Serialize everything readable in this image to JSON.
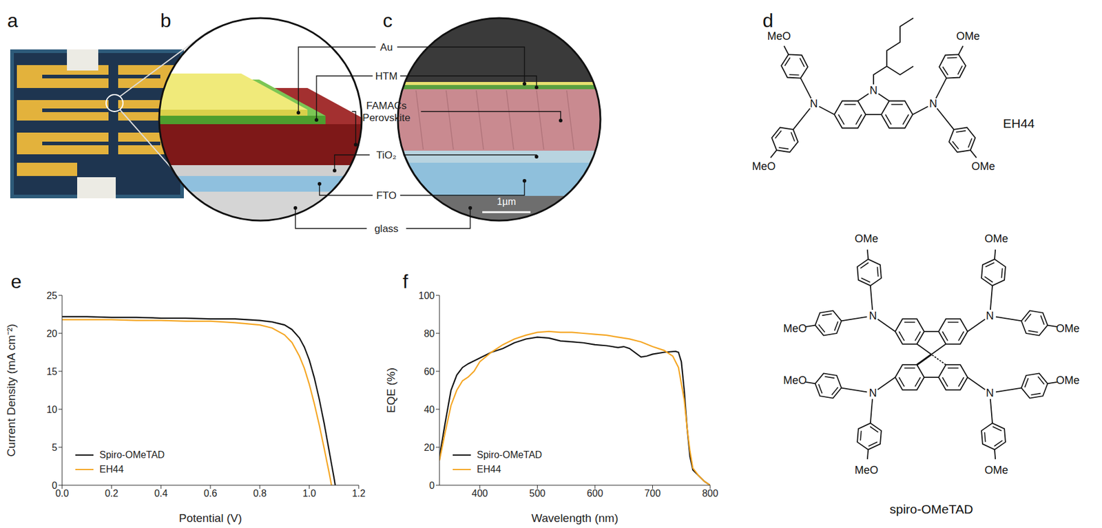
{
  "panel_letters": [
    "a",
    "b",
    "c",
    "d",
    "e",
    "f"
  ],
  "device": {
    "layers": [
      "Au",
      "HTM",
      "FAMACs Perovskite",
      "TiO₂",
      "FTO",
      "glass"
    ],
    "scale_bar": "1µm"
  },
  "molecules": {
    "top": "EH44",
    "bottom": "spiro-OMeTAD",
    "methoxy_left": "MeO",
    "methoxy_right": "OMe",
    "nitrogen": "N"
  },
  "chart_data": [
    {
      "type": "line",
      "x_label": "Potential (V)",
      "y_label": "Current Density (mA cm⁻²)",
      "xlim": [
        0,
        1.2
      ],
      "xticks": [
        {
          "value": 0,
          "label": "0.0"
        },
        0.2,
        0.4,
        0.6,
        0.8,
        {
          "value": 1,
          "label": "1.0"
        },
        1.2
      ],
      "ylim": [
        0,
        25
      ],
      "yticks": [
        0,
        5,
        10,
        15,
        20,
        25
      ],
      "grid": false,
      "legend": "lower left",
      "series": [
        {
          "name": "Spiro-OMeTAD",
          "color": "#111111",
          "x": [
            0,
            0.1,
            0.2,
            0.3,
            0.4,
            0.5,
            0.6,
            0.7,
            0.8,
            0.85,
            0.9,
            0.93,
            0.96,
            0.98,
            1.0,
            1.02,
            1.04,
            1.06,
            1.08,
            1.1,
            1.105
          ],
          "values": [
            22.2,
            22.2,
            22.1,
            22.1,
            22.0,
            22.0,
            21.9,
            21.9,
            21.7,
            21.5,
            21.1,
            20.5,
            19.4,
            18.2,
            16.5,
            14.2,
            11.4,
            8.2,
            4.6,
            1.0,
            0
          ]
        },
        {
          "name": "EH44",
          "color": "#f5a623",
          "x": [
            0,
            0.1,
            0.2,
            0.3,
            0.4,
            0.5,
            0.6,
            0.7,
            0.8,
            0.85,
            0.9,
            0.93,
            0.96,
            0.98,
            1.0,
            1.02,
            1.04,
            1.06,
            1.08,
            1.09
          ],
          "values": [
            21.8,
            21.8,
            21.8,
            21.7,
            21.7,
            21.6,
            21.6,
            21.4,
            21.1,
            20.7,
            19.8,
            18.8,
            17.0,
            15.4,
            13.3,
            10.8,
            8.0,
            4.9,
            1.7,
            0
          ]
        }
      ]
    },
    {
      "type": "line",
      "x_label": "Wavelength (nm)",
      "y_label": "EQE (%)",
      "xlim": [
        330,
        800
      ],
      "xticks": [
        400,
        500,
        600,
        700,
        800
      ],
      "ylim": [
        0,
        100
      ],
      "yticks": [
        0,
        20,
        40,
        60,
        80,
        100
      ],
      "grid": false,
      "legend": "lower left",
      "series": [
        {
          "name": "Spiro-OMeTAD",
          "color": "#111111",
          "x": [
            330,
            340,
            350,
            360,
            370,
            380,
            400,
            420,
            440,
            460,
            480,
            500,
            520,
            540,
            560,
            580,
            600,
            620,
            640,
            650,
            660,
            680,
            690,
            700,
            720,
            740,
            745,
            750,
            755,
            760,
            765,
            770,
            780,
            790,
            800
          ],
          "values": [
            15,
            33,
            50,
            58,
            62,
            64,
            67,
            70,
            72,
            75,
            77,
            78,
            77.5,
            76,
            75.5,
            75,
            74,
            73.5,
            72.5,
            73,
            72,
            67.5,
            68,
            69,
            70,
            70.5,
            70,
            65,
            50,
            30,
            15,
            8,
            5,
            2,
            0
          ]
        },
        {
          "name": "EH44",
          "color": "#f5a623",
          "x": [
            330,
            340,
            350,
            360,
            370,
            380,
            390,
            400,
            420,
            440,
            460,
            480,
            500,
            520,
            540,
            560,
            580,
            600,
            620,
            640,
            660,
            680,
            700,
            720,
            735,
            745,
            755,
            760,
            765,
            770,
            780,
            790,
            800
          ],
          "values": [
            13,
            28,
            42,
            50,
            55,
            57,
            60,
            65,
            70,
            74,
            77,
            79,
            80.5,
            81,
            80.5,
            80.5,
            80,
            79.5,
            79,
            78,
            77,
            75.5,
            73,
            71,
            68,
            62,
            45,
            30,
            18,
            9,
            5,
            2,
            0
          ]
        }
      ]
    }
  ]
}
